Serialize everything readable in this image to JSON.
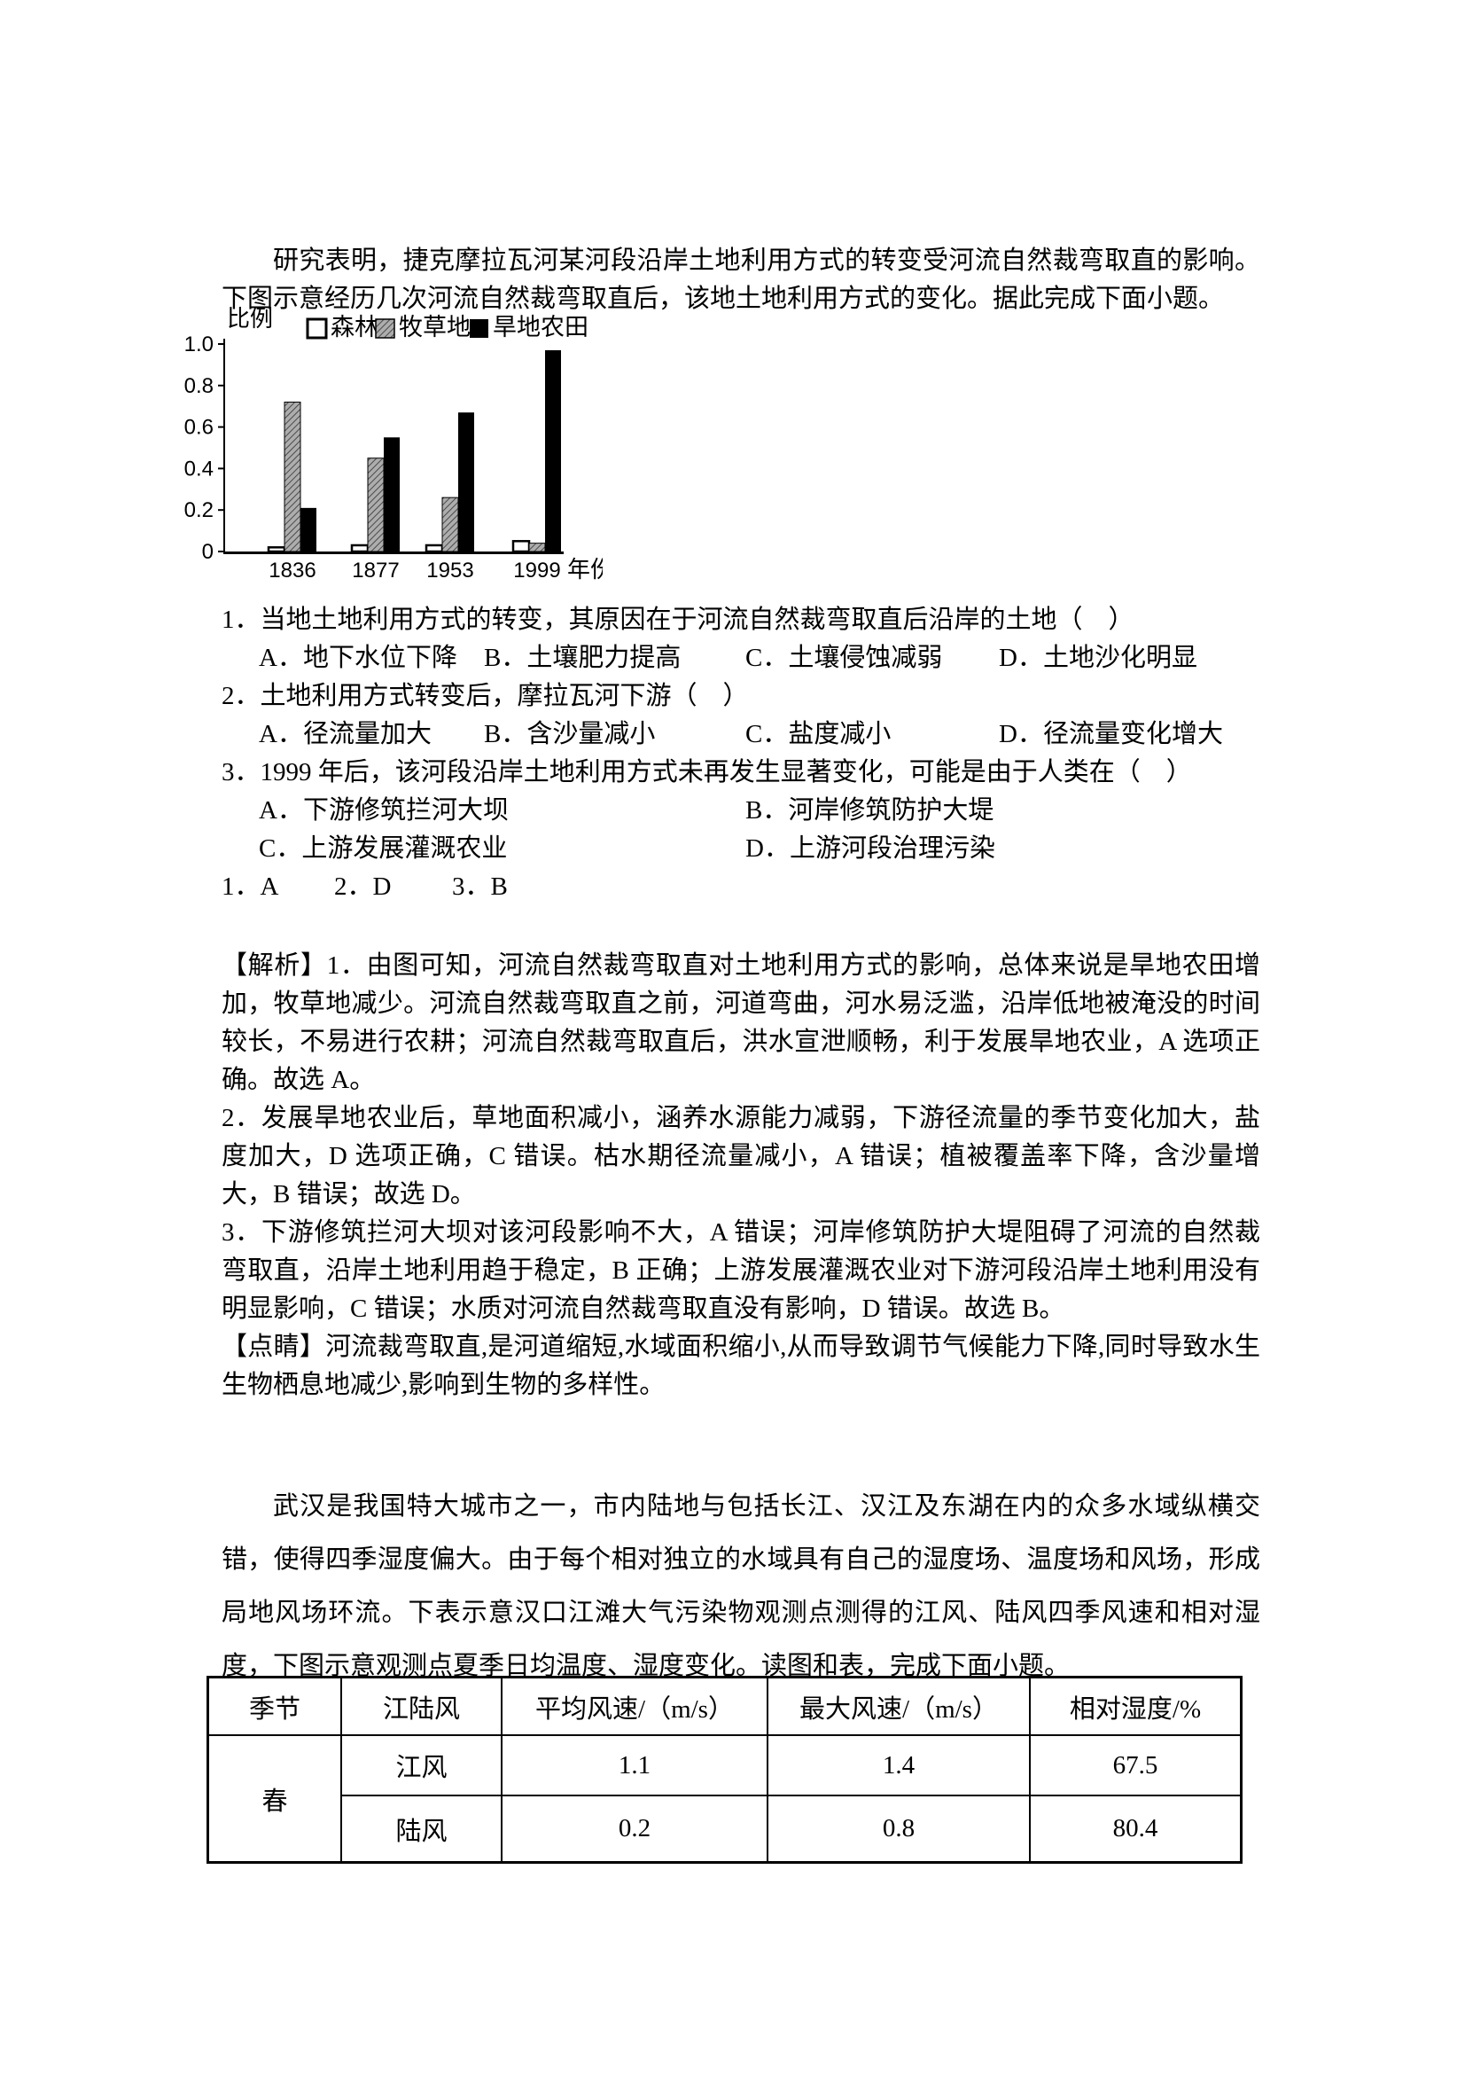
{
  "intro": {
    "text": "研究表明，捷克摩拉瓦河某河段沿岸土地利用方式的转变受河流自然裁弯取直的影响。下图示意经历几次河流自然裁弯取直后，该地土地利用方式的变化。据此完成下面小题。"
  },
  "chart_data": {
    "type": "bar",
    "title": "",
    "ylabel": "比例",
    "xlabel": "年份",
    "categories": [
      "1836",
      "1877",
      "1953",
      "1999"
    ],
    "series": [
      {
        "name": "森林",
        "style": "outline",
        "values": [
          0.02,
          0.03,
          0.03,
          0.05
        ]
      },
      {
        "name": "牧草地",
        "style": "hatch",
        "values": [
          0.72,
          0.45,
          0.26,
          0.04
        ]
      },
      {
        "name": "旱地农田",
        "style": "solid",
        "values": [
          0.21,
          0.55,
          0.67,
          0.97
        ]
      }
    ],
    "ylim": [
      0,
      1.0
    ],
    "yticks": [
      0,
      0.2,
      0.4,
      0.6,
      0.8,
      1.0
    ],
    "legend_position": "top",
    "grid": false,
    "colors": {
      "outline": "#ffffff",
      "hatch": "#adadad",
      "solid": "#000000"
    }
  },
  "questions": [
    {
      "stem": "1．当地土地利用方式的转变，其原因在于河流自然裁弯取直后沿岸的土地（　）",
      "options": [
        "A．地下水位下降",
        "B．土壤肥力提高",
        "C．土壤侵蚀减弱",
        "D．土地沙化明显"
      ]
    },
    {
      "stem": "2．土地利用方式转变后，摩拉瓦河下游（　）",
      "options": [
        "A．径流量加大",
        "B．含沙量减小",
        "C．盐度减小",
        "D．径流量变化增大"
      ]
    },
    {
      "stem": "3．1999 年后，该河段沿岸土地利用方式未再发生显著变化，可能是由于人类在（　）",
      "options": [
        "A．下游修筑拦河大坝",
        "B．河岸修筑防护大堤",
        "C．上游发展灌溉农业",
        "D．上游河段治理污染"
      ]
    }
  ],
  "answers": {
    "items": [
      "1．A",
      "2．D",
      "3．B"
    ]
  },
  "explanation": {
    "p1": "【解析】1．由图可知，河流自然裁弯取直对土地利用方式的影响，总体来说是旱地农田增加，牧草地减少。河流自然裁弯取直之前，河道弯曲，河水易泛滥，沿岸低地被淹没的时间较长，不易进行农耕；河流自然裁弯取直后，洪水宣泄顺畅，利于发展旱地农业，A 选项正确。故选 A。",
    "p2": "2．发展旱地农业后，草地面积减小，涵养水源能力减弱，下游径流量的季节变化加大，盐度加大，D 选项正确，C 错误。枯水期径流量减小，A 错误；植被覆盖率下降，含沙量增大，B 错误；故选 D。",
    "p3": "3．下游修筑拦河大坝对该河段影响不大，A 错误；河岸修筑防护大堤阻碍了河流的自然裁弯取直，沿岸土地利用趋于稳定，B 正确；上游发展灌溉农业对下游河段沿岸土地利用没有明显影响，C 错误；水质对河流自然裁弯取直没有影响，D 错误。故选 B。",
    "p4": "【点睛】河流裁弯取直,是河道缩短,水域面积缩小,从而导致调节气候能力下降,同时导致水生生物栖息地减少,影响到生物的多样性。"
  },
  "passage2": {
    "text": "武汉是我国特大城市之一，市内陆地与包括长江、汉江及东湖在内的众多水域纵横交错，使得四季湿度偏大。由于每个相对独立的水域具有自己的湿度场、温度场和风场，形成局地风场环流。下表示意汉口江滩大气污染物观测点测得的江风、陆风四季风速和相对湿度，下图示意观测点夏季日均温度、湿度变化。读图和表，完成下面小题。"
  },
  "table": {
    "headers": [
      "季节",
      "江陆风",
      "平均风速/（m/s）",
      "最大风速/（m/s）",
      "相对湿度/%"
    ],
    "season": "春",
    "rows": [
      {
        "wind": "江风",
        "avg": "1.1",
        "max": "1.4",
        "humidity": "67.5"
      },
      {
        "wind": "陆风",
        "avg": "0.2",
        "max": "0.8",
        "humidity": "80.4"
      }
    ]
  }
}
